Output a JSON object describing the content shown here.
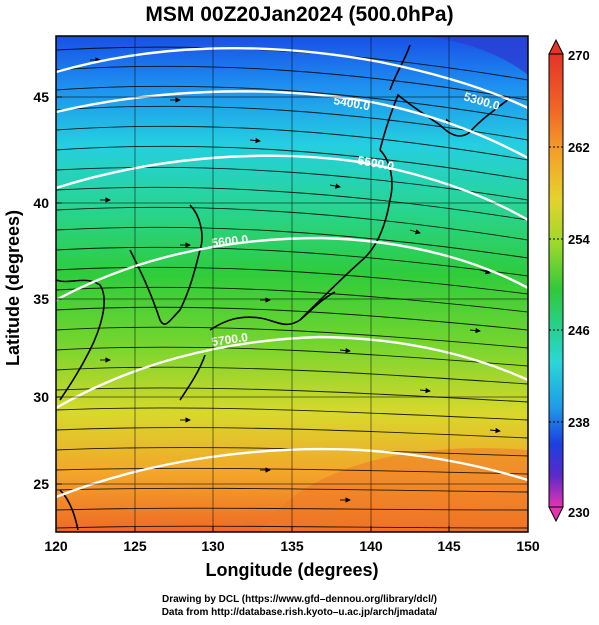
{
  "title": "MSM 00Z20Jan2024 (500.0hPa)",
  "x_axis": {
    "label": "Longitude (degrees)",
    "ticks": [
      "120",
      "125",
      "130",
      "135",
      "140",
      "145",
      "150"
    ],
    "range": [
      120,
      150
    ]
  },
  "y_axis": {
    "label": "Latitude  (degrees)",
    "ticks": [
      "25",
      "30",
      "35",
      "40",
      "45"
    ],
    "range": [
      22.4,
      47.6
    ]
  },
  "colorbar": {
    "labels": [
      "270",
      "262",
      "254",
      "246",
      "238",
      "230"
    ],
    "range": [
      230,
      270
    ],
    "colors": [
      "#e633b0",
      "#5a2ac8",
      "#1c3fe0",
      "#1f9be8",
      "#2ad7d7",
      "#28d089",
      "#31c93a",
      "#9ad92c",
      "#e6d22c",
      "#f3a22a",
      "#f06526",
      "#e53428"
    ]
  },
  "contours": {
    "labels": [
      "5300.0",
      "5400.0",
      "5500.0",
      "5600.0",
      "5700.0"
    ]
  },
  "credits": {
    "line1": "Drawing by DCL (https://www.gfd–dennou.org/library/dcl/)",
    "line2": "Data from http://database.rish.kyoto–u.ac.jp/arch/jmadata/"
  }
}
